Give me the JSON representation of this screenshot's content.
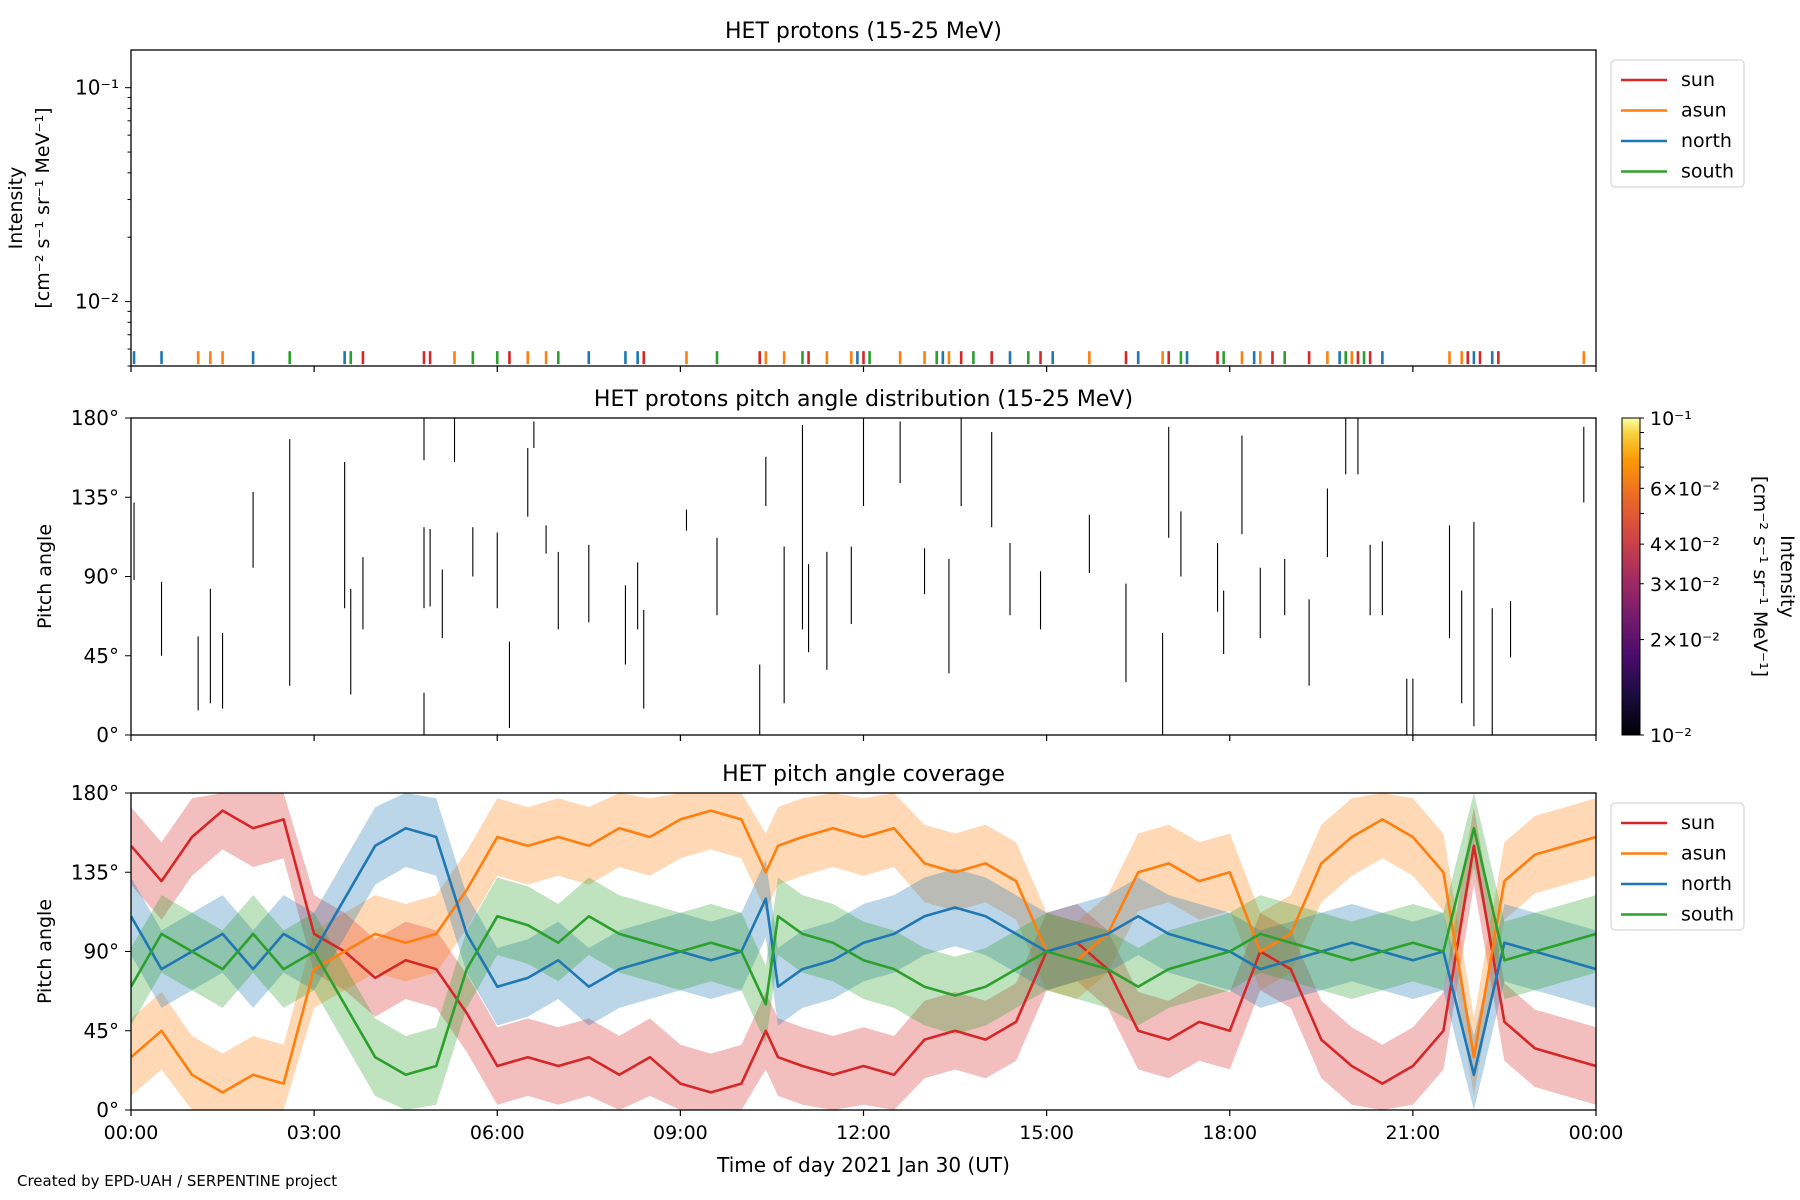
{
  "footer": {
    "credit": "Created by EPD-UAH / SERPENTINE project"
  },
  "colors": {
    "sun": "#d62728",
    "asun": "#ff7f0e",
    "north": "#1f77b4",
    "south": "#2ca02c"
  },
  "chart_data": [
    {
      "type": "scatter",
      "title": "HET protons (15-25 MeV)",
      "ylabel": "Intensity",
      "ylabel_units": "[cm⁻² s⁻¹ sr⁻¹ MeV⁻¹]",
      "yscale": "log",
      "ylim": [
        0.005,
        0.15
      ],
      "yticks": [
        {
          "value": 0.1,
          "label": "10⁻¹"
        },
        {
          "value": 0.01,
          "label": "10⁻²"
        }
      ],
      "xlim_hours": [
        0,
        24
      ],
      "legend": {
        "placement": "outside-right-top",
        "entries": [
          "sun",
          "asun",
          "north",
          "south"
        ]
      },
      "grid": false,
      "series": [
        {
          "name": "sun",
          "color": "#d62728",
          "marker_value": 0.0055,
          "x_hours": [
            3.8,
            4.8,
            4.9,
            6.2,
            8.4,
            10.3,
            11.1,
            12.0,
            13.2,
            13.6,
            14.1,
            14.9,
            16.3,
            17.0,
            17.8,
            18.7,
            19.3,
            20.1,
            20.3,
            21.9,
            22.1,
            22.4
          ]
        },
        {
          "name": "asun",
          "color": "#ff7f0e",
          "marker_value": 0.0055,
          "x_hours": [
            1.1,
            1.3,
            1.5,
            5.3,
            6.5,
            6.8,
            9.1,
            10.4,
            10.7,
            11.4,
            11.8,
            12.6,
            13.0,
            13.4,
            15.7,
            16.9,
            18.2,
            18.5,
            19.6,
            20.0,
            21.6,
            21.8,
            23.8
          ]
        },
        {
          "name": "north",
          "color": "#1f77b4",
          "marker_value": 0.0055,
          "x_hours": [
            0.05,
            0.5,
            2.0,
            3.5,
            7.5,
            8.1,
            8.3,
            11.9,
            13.3,
            14.4,
            15.1,
            16.5,
            17.3,
            18.4,
            19.8,
            20.5,
            22.0,
            22.3
          ]
        },
        {
          "name": "south",
          "color": "#2ca02c",
          "marker_value": 0.0055,
          "x_hours": [
            2.6,
            3.6,
            5.6,
            6.0,
            7.0,
            9.6,
            11.0,
            12.1,
            13.2,
            13.8,
            14.7,
            17.2,
            17.9,
            18.9,
            19.9,
            20.2
          ]
        }
      ]
    },
    {
      "type": "heatmap",
      "title": "HET protons pitch angle distribution (15-25 MeV)",
      "ylabel": "Pitch angle",
      "ylim": [
        0,
        180
      ],
      "yticks": [
        "0°",
        "45°",
        "90°",
        "135°",
        "180°"
      ],
      "xlim_hours": [
        0,
        24
      ],
      "colorbar": {
        "label": "Intensity",
        "units": "[cm⁻² s⁻¹ sr⁻¹ MeV⁻¹]",
        "scale": "log",
        "range": [
          0.01,
          0.1
        ],
        "ticks": [
          {
            "value": 0.1,
            "label": "10⁻¹"
          },
          {
            "value": 0.06,
            "label": "6×10⁻²"
          },
          {
            "value": 0.04,
            "label": "4×10⁻²"
          },
          {
            "value": 0.03,
            "label": "3×10⁻²"
          },
          {
            "value": 0.02,
            "label": "2×10⁻²"
          },
          {
            "value": 0.01,
            "label": "10⁻²"
          }
        ]
      },
      "segments": [
        [
          0.05,
          88,
          132
        ],
        [
          0.5,
          45,
          87
        ],
        [
          1.1,
          14,
          56
        ],
        [
          1.3,
          18,
          83
        ],
        [
          1.5,
          15,
          58
        ],
        [
          2.0,
          95,
          138
        ],
        [
          2.6,
          28,
          168
        ],
        [
          3.5,
          72,
          155
        ],
        [
          3.6,
          23,
          83
        ],
        [
          3.8,
          60,
          101
        ],
        [
          4.8,
          0,
          24
        ],
        [
          4.8,
          72,
          118
        ],
        [
          4.8,
          156,
          180
        ],
        [
          4.9,
          73,
          117
        ],
        [
          5.1,
          55,
          94
        ],
        [
          5.3,
          155,
          180
        ],
        [
          5.6,
          90,
          118
        ],
        [
          6.0,
          72,
          115
        ],
        [
          6.2,
          4,
          53
        ],
        [
          6.5,
          124,
          163
        ],
        [
          6.6,
          163,
          178
        ],
        [
          6.8,
          103,
          119
        ],
        [
          7.0,
          60,
          104
        ],
        [
          7.5,
          64,
          108
        ],
        [
          8.1,
          40,
          85
        ],
        [
          8.3,
          60,
          98
        ],
        [
          8.4,
          15,
          71
        ],
        [
          9.1,
          116,
          128
        ],
        [
          9.6,
          68,
          112
        ],
        [
          10.3,
          0,
          40
        ],
        [
          10.4,
          130,
          158
        ],
        [
          10.7,
          18,
          107
        ],
        [
          11.0,
          60,
          176
        ],
        [
          11.1,
          47,
          97
        ],
        [
          11.4,
          37,
          104
        ],
        [
          11.8,
          63,
          107
        ],
        [
          12.0,
          130,
          180
        ],
        [
          12.6,
          143,
          178
        ],
        [
          13.0,
          80,
          106
        ],
        [
          13.4,
          35,
          100
        ],
        [
          13.6,
          130,
          180
        ],
        [
          14.1,
          118,
          172
        ],
        [
          14.4,
          68,
          109
        ],
        [
          14.9,
          60,
          93
        ],
        [
          15.7,
          92,
          125
        ],
        [
          16.3,
          30,
          86
        ],
        [
          16.9,
          0,
          58
        ],
        [
          17.0,
          112,
          175
        ],
        [
          17.2,
          90,
          127
        ],
        [
          17.8,
          70,
          109
        ],
        [
          17.9,
          46,
          82
        ],
        [
          18.2,
          114,
          170
        ],
        [
          18.5,
          55,
          95
        ],
        [
          18.9,
          68,
          100
        ],
        [
          19.3,
          28,
          77
        ],
        [
          19.6,
          101,
          140
        ],
        [
          19.9,
          148,
          180
        ],
        [
          20.1,
          148,
          180
        ],
        [
          20.3,
          68,
          108
        ],
        [
          20.5,
          68,
          110
        ],
        [
          20.9,
          0,
          32
        ],
        [
          21.0,
          0,
          32
        ],
        [
          21.6,
          55,
          119
        ],
        [
          21.8,
          18,
          82
        ],
        [
          22.0,
          5,
          121
        ],
        [
          22.3,
          0,
          72
        ],
        [
          22.6,
          44,
          76
        ],
        [
          23.8,
          132,
          175
        ]
      ]
    },
    {
      "type": "area",
      "title": "HET pitch angle coverage",
      "xlabel": "Time of day 2021 Jan 30 (UT)",
      "ylabel": "Pitch angle",
      "ylim": [
        0,
        180
      ],
      "yticks": [
        "0°",
        "45°",
        "90°",
        "135°",
        "180°"
      ],
      "xlim_hours": [
        0,
        24
      ],
      "xticks": [
        "00:00",
        "03:00",
        "06:00",
        "09:00",
        "12:00",
        "15:00",
        "18:00",
        "21:00",
        "00:00"
      ],
      "legend": {
        "placement": "outside-right-top",
        "entries": [
          "sun",
          "asun",
          "north",
          "south"
        ]
      },
      "band_halfwidth_deg": 22,
      "series": [
        {
          "name": "sun",
          "color": "#d62728",
          "x_hours": [
            0,
            0.5,
            1,
            1.5,
            2,
            2.5,
            3,
            3.5,
            4,
            4.5,
            5,
            5.5,
            6,
            6.5,
            7,
            7.5,
            8,
            8.5,
            9,
            9.5,
            10,
            10.4,
            10.6,
            11,
            11.5,
            12,
            12.5,
            13,
            13.5,
            14,
            14.5,
            15,
            15.5,
            16,
            16.5,
            17,
            17.5,
            18,
            18.5,
            19,
            19.5,
            20,
            20.5,
            21,
            21.5,
            22,
            22.5,
            23,
            23.5,
            24
          ],
          "pitch_deg": [
            150,
            130,
            155,
            170,
            160,
            165,
            100,
            90,
            75,
            85,
            80,
            55,
            25,
            30,
            25,
            30,
            20,
            30,
            15,
            10,
            15,
            45,
            30,
            25,
            20,
            25,
            20,
            40,
            45,
            40,
            50,
            90,
            95,
            80,
            45,
            40,
            50,
            45,
            90,
            80,
            40,
            25,
            15,
            25,
            45,
            150,
            50,
            35,
            30,
            25
          ]
        },
        {
          "name": "asun",
          "color": "#ff7f0e",
          "x_hours": [
            0,
            0.5,
            1,
            1.5,
            2,
            2.5,
            3,
            3.5,
            4,
            4.5,
            5,
            5.5,
            6,
            6.5,
            7,
            7.5,
            8,
            8.5,
            9,
            9.5,
            10,
            10.4,
            10.6,
            11,
            11.5,
            12,
            12.5,
            13,
            13.5,
            14,
            14.5,
            15,
            15.5,
            16,
            16.5,
            17,
            17.5,
            18,
            18.5,
            19,
            19.5,
            20,
            20.5,
            21,
            21.5,
            22,
            22.5,
            23,
            23.5,
            24
          ],
          "pitch_deg": [
            30,
            45,
            20,
            10,
            20,
            15,
            80,
            90,
            100,
            95,
            100,
            125,
            155,
            150,
            155,
            150,
            160,
            155,
            165,
            170,
            165,
            135,
            150,
            155,
            160,
            155,
            160,
            140,
            135,
            140,
            130,
            90,
            85,
            100,
            135,
            140,
            130,
            135,
            90,
            100,
            140,
            155,
            165,
            155,
            135,
            30,
            130,
            145,
            150,
            155
          ]
        },
        {
          "name": "north",
          "color": "#1f77b4",
          "x_hours": [
            0,
            0.5,
            1,
            1.5,
            2,
            2.5,
            3,
            3.5,
            4,
            4.5,
            5,
            5.5,
            6,
            6.5,
            7,
            7.5,
            8,
            8.5,
            9,
            9.5,
            10,
            10.4,
            10.6,
            11,
            11.5,
            12,
            12.5,
            13,
            13.5,
            14,
            14.5,
            15,
            15.5,
            16,
            16.5,
            17,
            17.5,
            18,
            18.5,
            19,
            19.5,
            20,
            20.5,
            21,
            21.5,
            22,
            22.5,
            23,
            23.5,
            24
          ],
          "pitch_deg": [
            110,
            80,
            90,
            100,
            80,
            100,
            90,
            120,
            150,
            160,
            155,
            100,
            70,
            75,
            85,
            70,
            80,
            85,
            90,
            85,
            90,
            120,
            70,
            80,
            85,
            95,
            100,
            110,
            115,
            110,
            100,
            90,
            95,
            100,
            110,
            100,
            95,
            90,
            80,
            85,
            90,
            95,
            90,
            85,
            90,
            20,
            95,
            90,
            85,
            80
          ]
        },
        {
          "name": "south",
          "color": "#2ca02c",
          "x_hours": [
            0,
            0.5,
            1,
            1.5,
            2,
            2.5,
            3,
            3.5,
            4,
            4.5,
            5,
            5.5,
            6,
            6.5,
            7,
            7.5,
            8,
            8.5,
            9,
            9.5,
            10,
            10.4,
            10.6,
            11,
            11.5,
            12,
            12.5,
            13,
            13.5,
            14,
            14.5,
            15,
            15.5,
            16,
            16.5,
            17,
            17.5,
            18,
            18.5,
            19,
            19.5,
            20,
            20.5,
            21,
            21.5,
            22,
            22.5,
            23,
            23.5,
            24
          ],
          "pitch_deg": [
            70,
            100,
            90,
            80,
            100,
            80,
            90,
            60,
            30,
            20,
            25,
            80,
            110,
            105,
            95,
            110,
            100,
            95,
            90,
            95,
            90,
            60,
            110,
            100,
            95,
            85,
            80,
            70,
            65,
            70,
            80,
            90,
            85,
            80,
            70,
            80,
            85,
            90,
            100,
            95,
            90,
            85,
            90,
            95,
            90,
            160,
            85,
            90,
            95,
            100
          ]
        }
      ]
    }
  ]
}
